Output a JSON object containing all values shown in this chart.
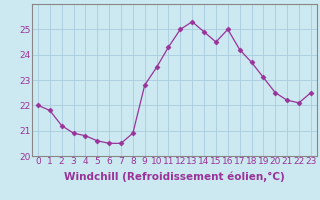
{
  "x": [
    0,
    1,
    2,
    3,
    4,
    5,
    6,
    7,
    8,
    9,
    10,
    11,
    12,
    13,
    14,
    15,
    16,
    17,
    18,
    19,
    20,
    21,
    22,
    23
  ],
  "y": [
    22.0,
    21.8,
    21.2,
    20.9,
    20.8,
    20.6,
    20.5,
    20.5,
    20.9,
    22.8,
    23.5,
    24.3,
    25.0,
    25.3,
    24.9,
    24.5,
    25.0,
    24.2,
    23.7,
    23.1,
    22.5,
    22.2,
    22.1,
    22.5
  ],
  "line_color": "#993399",
  "marker": "D",
  "marker_size": 2.5,
  "bg_color": "#cce8f0",
  "grid_color": "#aaccdd",
  "xlabel": "Windchill (Refroidissement éolien,°C)",
  "xlabel_fontsize": 7.5,
  "tick_fontsize": 6.5,
  "xlim": [
    -0.5,
    23.5
  ],
  "ylim": [
    20.0,
    26.0
  ],
  "yticks": [
    20,
    21,
    22,
    23,
    24,
    25
  ],
  "xticks": [
    0,
    1,
    2,
    3,
    4,
    5,
    6,
    7,
    8,
    9,
    10,
    11,
    12,
    13,
    14,
    15,
    16,
    17,
    18,
    19,
    20,
    21,
    22,
    23
  ]
}
